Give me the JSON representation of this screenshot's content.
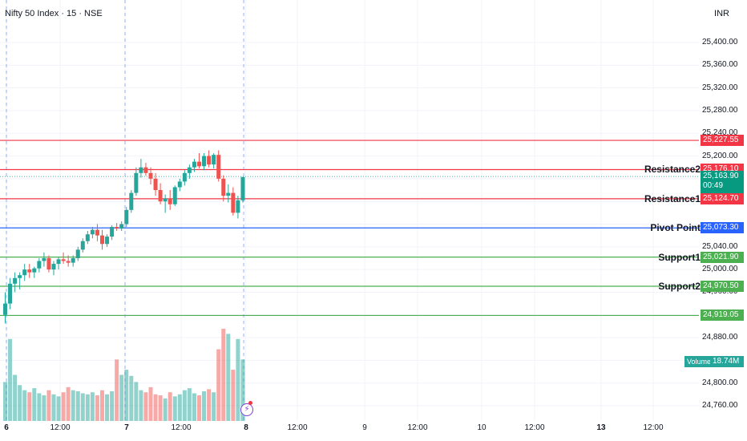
{
  "header": {
    "symbol": "Nifty 50 Index · 15 · NSE",
    "currency": "INR"
  },
  "colors": {
    "up": "#26a69a",
    "down": "#ef5350",
    "resistance": "#f23645",
    "pivot": "#2962ff",
    "support": "#4caf50"
  },
  "y_axis": {
    "ticks": [
      "25,400.00",
      "25,360.00",
      "25,320.00",
      "25,280.00",
      "25,240.00",
      "25,200.00",
      "25,040.00",
      "25,000.00",
      "24,960.00",
      "24,880.00",
      "24,840.00",
      "24,800.00",
      "24,760.00"
    ]
  },
  "x_axis": {
    "ticks": [
      {
        "label": "6",
        "bold": true
      },
      {
        "label": "12:00",
        "bold": false
      },
      {
        "label": "7",
        "bold": true
      },
      {
        "label": "12:00",
        "bold": false
      },
      {
        "label": "8",
        "bold": true
      },
      {
        "label": "12:00",
        "bold": false
      },
      {
        "label": "9",
        "bold": false
      },
      {
        "label": "12:00",
        "bold": false
      },
      {
        "label": "10",
        "bold": false
      },
      {
        "label": "12:00",
        "bold": false
      },
      {
        "label": "13",
        "bold": true
      },
      {
        "label": "12:00",
        "bold": false
      }
    ]
  },
  "levels": {
    "resistance2": {
      "label": "Resistance2",
      "value": "25,176.10",
      "price": 25176.1
    },
    "resistance1": {
      "label": "Resistance1",
      "value": "25,124.70",
      "price": 25124.7
    },
    "pivot": {
      "label": "Pivot Point",
      "value": "25,073.30",
      "price": 25073.3
    },
    "support1": {
      "label": "Support1",
      "value": "25,021.90",
      "price": 25021.9
    },
    "support2": {
      "label": "Support2",
      "value": "24,970.50",
      "price": 24970.5
    },
    "top_line": {
      "value": "25,227.55",
      "price": 25227.55
    },
    "bottom_line": {
      "value": "24,919.05",
      "price": 24919.05
    }
  },
  "last_price": {
    "value": "25,163.90",
    "countdown": "00:49"
  },
  "volume": {
    "label": "Volume",
    "value": "18.74M"
  },
  "chart_data": {
    "type": "candlestick",
    "title": "Nifty 50 Index · 15 · NSE",
    "ylim": [
      24740,
      25440
    ],
    "candles": [
      [
        24920,
        24960,
        24905,
        24940
      ],
      [
        24940,
        24985,
        24930,
        24975
      ],
      [
        24975,
        24995,
        24960,
        24985
      ],
      [
        24985,
        24995,
        24965,
        24990
      ],
      [
        24990,
        25010,
        24980,
        25000
      ],
      [
        25000,
        25010,
        24985,
        24995
      ],
      [
        24995,
        25005,
        24985,
        25002
      ],
      [
        25002,
        25020,
        24995,
        25015
      ],
      [
        25015,
        25030,
        25005,
        25020
      ],
      [
        25020,
        25025,
        24995,
        25000
      ],
      [
        25000,
        25015,
        24990,
        25010
      ],
      [
        25010,
        25022,
        25000,
        25018
      ],
      [
        25018,
        25030,
        25010,
        25015
      ],
      [
        25015,
        25025,
        25005,
        25012
      ],
      [
        25012,
        25025,
        25005,
        25020
      ],
      [
        25020,
        25040,
        25015,
        25035
      ],
      [
        25035,
        25055,
        25030,
        25050
      ],
      [
        25050,
        25068,
        25045,
        25062
      ],
      [
        25062,
        25075,
        25055,
        25070
      ],
      [
        25070,
        25080,
        25050,
        25060
      ],
      [
        25060,
        25070,
        25035,
        25045
      ],
      [
        25045,
        25062,
        25040,
        25058
      ],
      [
        25058,
        25078,
        25052,
        25075
      ],
      [
        25075,
        25082,
        25068,
        25072
      ],
      [
        25072,
        25085,
        25068,
        25080
      ],
      [
        25080,
        25110,
        25075,
        25105
      ],
      [
        25105,
        25140,
        25100,
        25135
      ],
      [
        25135,
        25180,
        25130,
        25170
      ],
      [
        25170,
        25195,
        25162,
        25180
      ],
      [
        25180,
        25188,
        25165,
        25170
      ],
      [
        25170,
        25180,
        25150,
        25160
      ],
      [
        25160,
        25170,
        25130,
        25140
      ],
      [
        25140,
        25152,
        25115,
        25120
      ],
      [
        25120,
        25132,
        25100,
        25125
      ],
      [
        25125,
        25140,
        25105,
        25115
      ],
      [
        25115,
        25148,
        25112,
        25145
      ],
      [
        25145,
        25160,
        25138,
        25155
      ],
      [
        25155,
        25175,
        25148,
        25170
      ],
      [
        25170,
        25185,
        25160,
        25180
      ],
      [
        25180,
        25195,
        25172,
        25190
      ],
      [
        25190,
        25205,
        25178,
        25182
      ],
      [
        25182,
        25205,
        25175,
        25200
      ],
      [
        25200,
        25210,
        25180,
        25185
      ],
      [
        25185,
        25205,
        25178,
        25202
      ],
      [
        25202,
        25210,
        25155,
        25160
      ],
      [
        25160,
        25166,
        25120,
        25130
      ],
      [
        25130,
        25150,
        25118,
        25135
      ],
      [
        25135,
        25145,
        25095,
        25100
      ],
      [
        25100,
        25130,
        25090,
        25122
      ],
      [
        25122,
        25160,
        25118,
        25163
      ]
    ],
    "volume": [
      38,
      80,
      45,
      35,
      30,
      28,
      32,
      27,
      25,
      30,
      26,
      24,
      28,
      33,
      30,
      29,
      27,
      26,
      28,
      25,
      30,
      26,
      29,
      60,
      45,
      50,
      44,
      38,
      30,
      28,
      33,
      26,
      25,
      22,
      28,
      24,
      26,
      30,
      32,
      27,
      25,
      29,
      31,
      28,
      70,
      90,
      85,
      50,
      80,
      60
    ]
  }
}
